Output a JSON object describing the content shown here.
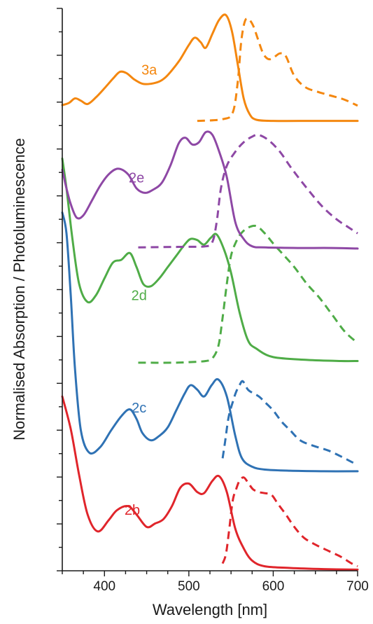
{
  "chart_data": {
    "type": "line",
    "title": "",
    "xlabel": "Wavelength [nm]",
    "ylabel": "Normalised Absorption / Photoluminescence",
    "xlim": [
      350,
      700
    ],
    "ylim": [
      0,
      1
    ],
    "x_ticks": [
      400,
      500,
      600,
      700
    ],
    "x_tick_labels": [
      "400",
      "500",
      "600",
      "700"
    ],
    "y_tick_labels_shown": false,
    "grid": false,
    "legend": "inline labels next to curves",
    "notes": "Curves are vertically offset (stacked); solid = absorption, dashed = photoluminescence.",
    "series": [
      {
        "name": "2b",
        "color": "#e0252b",
        "label_at": [
          433,
          0.106
        ],
        "absorption": [
          [
            350,
            0.31
          ],
          [
            360,
            0.252
          ],
          [
            370,
            0.17
          ],
          [
            380,
            0.1
          ],
          [
            392,
            0.07
          ],
          [
            405,
            0.09
          ],
          [
            415,
            0.108
          ],
          [
            428,
            0.115
          ],
          [
            438,
            0.1
          ],
          [
            450,
            0.078
          ],
          [
            460,
            0.084
          ],
          [
            470,
            0.092
          ],
          [
            480,
            0.115
          ],
          [
            490,
            0.148
          ],
          [
            500,
            0.155
          ],
          [
            510,
            0.14
          ],
          [
            518,
            0.138
          ],
          [
            528,
            0.16
          ],
          [
            536,
            0.168
          ],
          [
            545,
            0.14
          ],
          [
            555,
            0.075
          ],
          [
            565,
            0.04
          ],
          [
            575,
            0.018
          ],
          [
            590,
            0.008
          ],
          [
            620,
            0.005
          ],
          [
            660,
            0.003
          ],
          [
            700,
            0.002
          ]
        ],
        "photoluminescence": [
          [
            540,
            0.013
          ],
          [
            544,
            0.03
          ],
          [
            548,
            0.075
          ],
          [
            552,
            0.125
          ],
          [
            556,
            0.145
          ],
          [
            560,
            0.16
          ],
          [
            565,
            0.166
          ],
          [
            570,
            0.157
          ],
          [
            576,
            0.145
          ],
          [
            583,
            0.14
          ],
          [
            590,
            0.138
          ],
          [
            598,
            0.135
          ],
          [
            606,
            0.118
          ],
          [
            615,
            0.1
          ],
          [
            625,
            0.078
          ],
          [
            637,
            0.058
          ],
          [
            652,
            0.045
          ],
          [
            666,
            0.035
          ],
          [
            680,
            0.025
          ],
          [
            693,
            0.013
          ],
          [
            700,
            0.008
          ]
        ]
      },
      {
        "name": "2c",
        "color": "#2f72b4",
        "label_at": [
          441,
          0.288
        ],
        "absorption": [
          [
            350,
            0.637
          ],
          [
            355,
            0.6
          ],
          [
            360,
            0.49
          ],
          [
            365,
            0.36
          ],
          [
            372,
            0.25
          ],
          [
            382,
            0.21
          ],
          [
            395,
            0.22
          ],
          [
            408,
            0.25
          ],
          [
            420,
            0.275
          ],
          [
            430,
            0.287
          ],
          [
            438,
            0.27
          ],
          [
            445,
            0.245
          ],
          [
            455,
            0.232
          ],
          [
            465,
            0.24
          ],
          [
            475,
            0.255
          ],
          [
            485,
            0.285
          ],
          [
            495,
            0.315
          ],
          [
            502,
            0.33
          ],
          [
            510,
            0.322
          ],
          [
            518,
            0.31
          ],
          [
            527,
            0.33
          ],
          [
            535,
            0.34
          ],
          [
            545,
            0.31
          ],
          [
            555,
            0.24
          ],
          [
            563,
            0.2
          ],
          [
            575,
            0.185
          ],
          [
            590,
            0.18
          ],
          [
            620,
            0.178
          ],
          [
            660,
            0.177
          ],
          [
            700,
            0.177
          ]
        ],
        "photoluminescence": [
          [
            540,
            0.2
          ],
          [
            543,
            0.23
          ],
          [
            547,
            0.272
          ],
          [
            552,
            0.3
          ],
          [
            556,
            0.318
          ],
          [
            560,
            0.33
          ],
          [
            564,
            0.337
          ],
          [
            570,
            0.322
          ],
          [
            576,
            0.316
          ],
          [
            583,
            0.31
          ],
          [
            590,
            0.3
          ],
          [
            600,
            0.285
          ],
          [
            610,
            0.265
          ],
          [
            620,
            0.25
          ],
          [
            632,
            0.232
          ],
          [
            648,
            0.222
          ],
          [
            665,
            0.214
          ],
          [
            682,
            0.202
          ],
          [
            695,
            0.192
          ],
          [
            700,
            0.19
          ]
        ]
      },
      {
        "name": "2d",
        "color": "#4fac47",
        "label_at": [
          441,
          0.488
        ],
        "absorption": [
          [
            350,
            0.733
          ],
          [
            355,
            0.68
          ],
          [
            362,
            0.59
          ],
          [
            370,
            0.51
          ],
          [
            380,
            0.478
          ],
          [
            390,
            0.49
          ],
          [
            400,
            0.52
          ],
          [
            410,
            0.548
          ],
          [
            420,
            0.553
          ],
          [
            430,
            0.565
          ],
          [
            438,
            0.54
          ],
          [
            446,
            0.51
          ],
          [
            455,
            0.506
          ],
          [
            465,
            0.52
          ],
          [
            475,
            0.54
          ],
          [
            485,
            0.56
          ],
          [
            495,
            0.58
          ],
          [
            502,
            0.59
          ],
          [
            510,
            0.588
          ],
          [
            518,
            0.58
          ],
          [
            526,
            0.592
          ],
          [
            533,
            0.598
          ],
          [
            542,
            0.57
          ],
          [
            550,
            0.53
          ],
          [
            560,
            0.46
          ],
          [
            570,
            0.41
          ],
          [
            580,
            0.395
          ],
          [
            600,
            0.38
          ],
          [
            640,
            0.375
          ],
          [
            680,
            0.373
          ],
          [
            700,
            0.373
          ]
        ],
        "photoluminescence": [
          [
            440,
            0.37
          ],
          [
            480,
            0.37
          ],
          [
            500,
            0.371
          ],
          [
            520,
            0.373
          ],
          [
            528,
            0.378
          ],
          [
            535,
            0.4
          ],
          [
            540,
            0.45
          ],
          [
            545,
            0.51
          ],
          [
            550,
            0.56
          ],
          [
            556,
            0.585
          ],
          [
            562,
            0.6
          ],
          [
            570,
            0.61
          ],
          [
            580,
            0.613
          ],
          [
            590,
            0.6
          ],
          [
            600,
            0.582
          ],
          [
            612,
            0.562
          ],
          [
            625,
            0.54
          ],
          [
            640,
            0.51
          ],
          [
            655,
            0.485
          ],
          [
            670,
            0.455
          ],
          [
            685,
            0.425
          ],
          [
            700,
            0.405
          ]
        ]
      },
      {
        "name": "2e",
        "color": "#8e48a5",
        "label_at": [
          438,
          0.697
        ],
        "absorption": [
          [
            350,
            0.713
          ],
          [
            355,
            0.68
          ],
          [
            360,
            0.652
          ],
          [
            367,
            0.628
          ],
          [
            375,
            0.632
          ],
          [
            385,
            0.658
          ],
          [
            395,
            0.685
          ],
          [
            405,
            0.705
          ],
          [
            416,
            0.715
          ],
          [
            428,
            0.705
          ],
          [
            438,
            0.68
          ],
          [
            448,
            0.672
          ],
          [
            458,
            0.678
          ],
          [
            468,
            0.69
          ],
          [
            478,
            0.72
          ],
          [
            488,
            0.76
          ],
          [
            496,
            0.77
          ],
          [
            504,
            0.758
          ],
          [
            512,
            0.762
          ],
          [
            520,
            0.78
          ],
          [
            528,
            0.775
          ],
          [
            536,
            0.745
          ],
          [
            545,
            0.7
          ],
          [
            555,
            0.62
          ],
          [
            565,
            0.59
          ],
          [
            575,
            0.577
          ],
          [
            590,
            0.575
          ],
          [
            630,
            0.574
          ],
          [
            670,
            0.574
          ],
          [
            700,
            0.573
          ]
        ],
        "photoluminescence": [
          [
            440,
            0.575
          ],
          [
            490,
            0.576
          ],
          [
            520,
            0.577
          ],
          [
            528,
            0.585
          ],
          [
            533,
            0.62
          ],
          [
            538,
            0.68
          ],
          [
            545,
            0.72
          ],
          [
            555,
            0.745
          ],
          [
            565,
            0.762
          ],
          [
            575,
            0.772
          ],
          [
            583,
            0.775
          ],
          [
            595,
            0.765
          ],
          [
            608,
            0.745
          ],
          [
            622,
            0.715
          ],
          [
            640,
            0.68
          ],
          [
            658,
            0.648
          ],
          [
            675,
            0.625
          ],
          [
            690,
            0.61
          ],
          [
            700,
            0.6
          ]
        ]
      },
      {
        "name": "3a",
        "color": "#f4870f",
        "label_at": [
          453,
          0.889
        ],
        "absorption": [
          [
            350,
            0.828
          ],
          [
            358,
            0.832
          ],
          [
            365,
            0.84
          ],
          [
            372,
            0.836
          ],
          [
            380,
            0.83
          ],
          [
            390,
            0.842
          ],
          [
            400,
            0.858
          ],
          [
            410,
            0.875
          ],
          [
            418,
            0.887
          ],
          [
            426,
            0.885
          ],
          [
            435,
            0.874
          ],
          [
            445,
            0.866
          ],
          [
            455,
            0.866
          ],
          [
            465,
            0.87
          ],
          [
            472,
            0.877
          ],
          [
            480,
            0.89
          ],
          [
            490,
            0.91
          ],
          [
            500,
            0.935
          ],
          [
            507,
            0.948
          ],
          [
            514,
            0.94
          ],
          [
            520,
            0.93
          ],
          [
            528,
            0.955
          ],
          [
            536,
            0.98
          ],
          [
            544,
            0.988
          ],
          [
            551,
            0.96
          ],
          [
            558,
            0.9
          ],
          [
            565,
            0.84
          ],
          [
            572,
            0.812
          ],
          [
            580,
            0.802
          ],
          [
            600,
            0.8
          ],
          [
            650,
            0.8
          ],
          [
            700,
            0.8
          ]
        ],
        "photoluminescence": [
          [
            510,
            0.8
          ],
          [
            540,
            0.803
          ],
          [
            552,
            0.815
          ],
          [
            558,
            0.87
          ],
          [
            562,
            0.94
          ],
          [
            566,
            0.975
          ],
          [
            570,
            0.982
          ],
          [
            576,
            0.97
          ],
          [
            582,
            0.945
          ],
          [
            588,
            0.92
          ],
          [
            594,
            0.91
          ],
          [
            600,
            0.912
          ],
          [
            608,
            0.92
          ],
          [
            615,
            0.915
          ],
          [
            625,
            0.88
          ],
          [
            638,
            0.86
          ],
          [
            652,
            0.852
          ],
          [
            668,
            0.845
          ],
          [
            684,
            0.838
          ],
          [
            700,
            0.827
          ]
        ]
      }
    ]
  }
}
